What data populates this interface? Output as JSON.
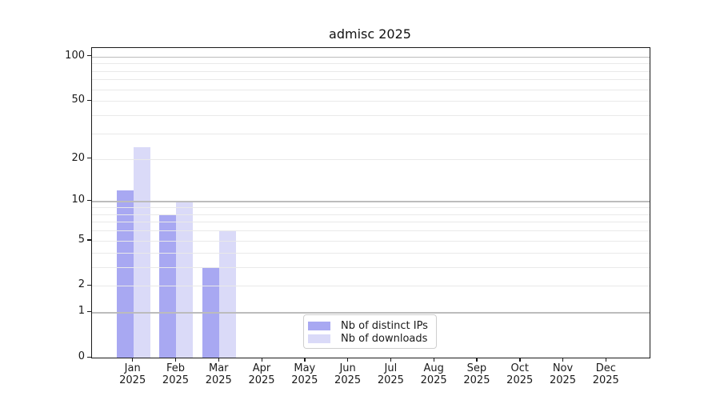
{
  "chart_data": {
    "type": "bar",
    "title": "admisc 2025",
    "categories": [
      "Jan",
      "Feb",
      "Mar",
      "Apr",
      "May",
      "Jun",
      "Jul",
      "Aug",
      "Sep",
      "Oct",
      "Nov",
      "Dec"
    ],
    "x_tick_year": "2025",
    "series": [
      {
        "name": "Nb of distinct IPs",
        "color": "#a8a8f2",
        "values": [
          12,
          8,
          3,
          0,
          0,
          0,
          0,
          0,
          0,
          0,
          0,
          0
        ]
      },
      {
        "name": "Nb of downloads",
        "color": "#dadaf8",
        "values": [
          24,
          10,
          6,
          0,
          0,
          0,
          0,
          0,
          0,
          0,
          0,
          0
        ]
      }
    ],
    "xlabel": "",
    "ylabel": "",
    "y_scale": "log10(value+1)",
    "y_ticks": [
      0,
      1,
      2,
      5,
      10,
      20,
      50,
      100
    ],
    "y_decade_gridlines": [
      1,
      10,
      100
    ],
    "y_minor_gridlines": [
      2,
      3,
      4,
      5,
      6,
      7,
      8,
      9,
      20,
      30,
      40,
      50,
      60,
      70,
      80,
      90
    ],
    "ylim": [
      0,
      113
    ],
    "grid": "horizontal",
    "legend_position": "inside-bottom-center",
    "colors": {
      "series_ips": "#a8a8f2",
      "series_downloads": "#dadaf8",
      "decade_grid": "#bcbcbc",
      "minor_grid": "#e9e9e9",
      "axis": "#1a1a1a",
      "background": "#ffffff"
    }
  }
}
